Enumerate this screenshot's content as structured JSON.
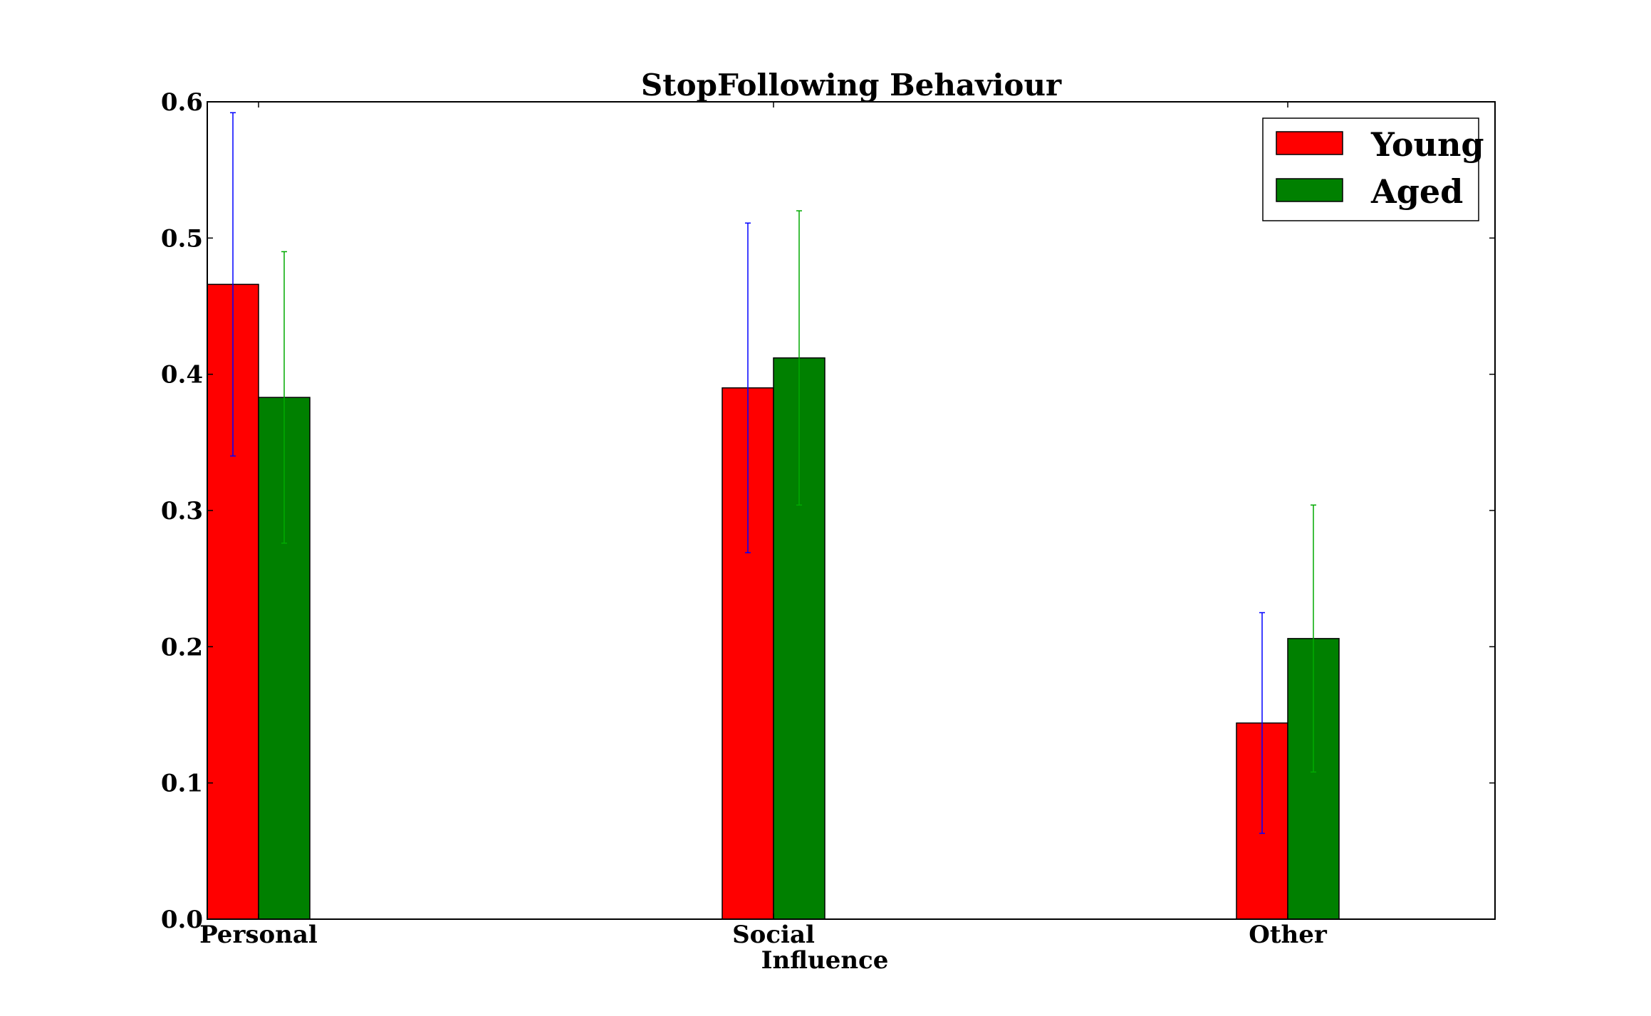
{
  "chart_data": {
    "type": "bar",
    "title": "StopFollowing Behaviour",
    "xlabel": "",
    "ylabel": "",
    "categories": [
      [
        "Personal"
      ],
      [
        "Social",
        "Influence"
      ],
      [
        "Other"
      ]
    ],
    "series": [
      {
        "name": "Young",
        "color": "#ff0000",
        "errorbar_color": "#0000ff",
        "values": [
          0.466,
          0.39,
          0.144
        ],
        "errors": [
          0.126,
          0.121,
          0.081
        ]
      },
      {
        "name": "Aged",
        "color": "#008000",
        "errorbar_color": "#00aa00",
        "values": [
          0.383,
          0.412,
          0.206
        ],
        "errors": [
          0.107,
          0.108,
          0.098
        ]
      }
    ],
    "ylim": [
      0.0,
      0.6
    ],
    "yticks": [
      "0.0",
      "0.1",
      "0.2",
      "0.3",
      "0.4",
      "0.5",
      "0.6"
    ],
    "grid": false,
    "legend_position": "top-right"
  }
}
